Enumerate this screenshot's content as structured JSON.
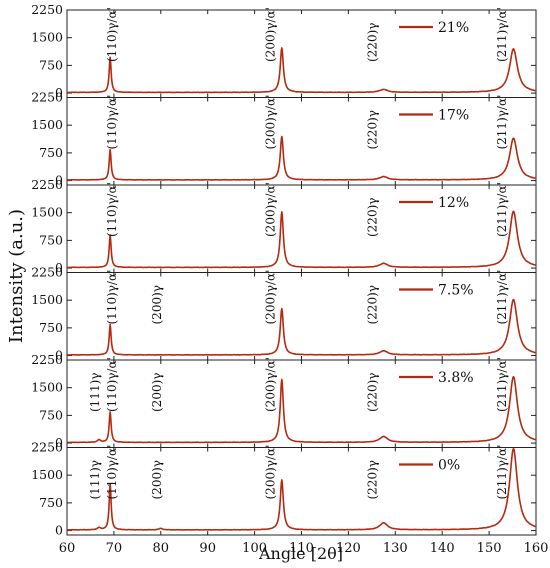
{
  "chart_data": {
    "type": "line",
    "xlabel": "Angle [2θ]",
    "ylabel": "Intensity (a.u.)",
    "xlim": [
      60,
      160
    ],
    "ylim": [
      -120,
      2250
    ],
    "xticks": [
      60,
      70,
      80,
      90,
      100,
      110,
      120,
      130,
      140,
      150,
      160
    ],
    "yticks": [
      0,
      750,
      1500,
      2250
    ],
    "grid": false,
    "legend_position": "top-right",
    "line_color": "#b22a10",
    "panels": [
      {
        "legend": "21%",
        "peaks": [
          {
            "x": 69.2,
            "y": 950,
            "w": 0.25
          },
          {
            "x": 105.8,
            "y": 1200,
            "w": 0.4
          },
          {
            "x": 127.5,
            "y": 80,
            "w": 1.0
          },
          {
            "x": 155.2,
            "y": 1180,
            "w": 1.0
          }
        ],
        "annotations": [
          {
            "x": 70.5,
            "text": "(110)γ/α'"
          },
          {
            "x": 104.2,
            "text": "(200)γ/α'"
          },
          {
            "x": 126.0,
            "text": "(220)γ"
          },
          {
            "x": 153.6,
            "text": "(211)γ/α'"
          }
        ]
      },
      {
        "legend": "17%",
        "peaks": [
          {
            "x": 69.2,
            "y": 820,
            "w": 0.25
          },
          {
            "x": 105.8,
            "y": 1170,
            "w": 0.4
          },
          {
            "x": 127.5,
            "y": 90,
            "w": 1.0
          },
          {
            "x": 155.2,
            "y": 1130,
            "w": 1.0
          }
        ],
        "annotations": [
          {
            "x": 70.5,
            "text": "(110)γ/α'"
          },
          {
            "x": 104.2,
            "text": "(200)γ/α'"
          },
          {
            "x": 126.0,
            "text": "(220)γ"
          },
          {
            "x": 153.6,
            "text": "(211)γ/α'"
          }
        ]
      },
      {
        "legend": "12%",
        "peaks": [
          {
            "x": 69.2,
            "y": 880,
            "w": 0.25
          },
          {
            "x": 105.8,
            "y": 1500,
            "w": 0.4
          },
          {
            "x": 127.5,
            "y": 110,
            "w": 1.0
          },
          {
            "x": 155.2,
            "y": 1520,
            "w": 1.0
          }
        ],
        "annotations": [
          {
            "x": 70.5,
            "text": "(110)γ/α'"
          },
          {
            "x": 104.2,
            "text": "(200)γ/α'"
          },
          {
            "x": 126.0,
            "text": "(220)γ"
          },
          {
            "x": 153.6,
            "text": "(211)γ/α'"
          }
        ]
      },
      {
        "legend": "7.5%",
        "peaks": [
          {
            "x": 69.2,
            "y": 820,
            "w": 0.25
          },
          {
            "x": 105.8,
            "y": 1250,
            "w": 0.4
          },
          {
            "x": 127.5,
            "y": 110,
            "w": 1.0
          },
          {
            "x": 155.2,
            "y": 1500,
            "w": 1.0
          }
        ],
        "annotations": [
          {
            "x": 70.5,
            "text": "(110)γ/α'"
          },
          {
            "x": 80.0,
            "text": "(200)γ"
          },
          {
            "x": 104.2,
            "text": "(200)γ/α'"
          },
          {
            "x": 126.0,
            "text": "(220)γ"
          },
          {
            "x": 153.6,
            "text": "(211)γ/α'"
          }
        ]
      },
      {
        "legend": "3.8%",
        "peaks": [
          {
            "x": 66.8,
            "y": 70,
            "w": 0.4
          },
          {
            "x": 69.2,
            "y": 820,
            "w": 0.25
          },
          {
            "x": 105.8,
            "y": 1700,
            "w": 0.4
          },
          {
            "x": 127.5,
            "y": 160,
            "w": 1.0
          },
          {
            "x": 155.2,
            "y": 1780,
            "w": 1.0
          }
        ],
        "annotations": [
          {
            "x": 66.8,
            "text": "(111)γ"
          },
          {
            "x": 70.5,
            "text": "(110)γ/α'"
          },
          {
            "x": 80.0,
            "text": "(200)γ"
          },
          {
            "x": 104.2,
            "text": "(200)γ/α'"
          },
          {
            "x": 126.0,
            "text": "(220)γ"
          },
          {
            "x": 153.6,
            "text": "(211)γ/α'"
          }
        ]
      },
      {
        "legend": "0%",
        "peaks": [
          {
            "x": 66.8,
            "y": 60,
            "w": 0.4
          },
          {
            "x": 69.2,
            "y": 1250,
            "w": 0.25
          },
          {
            "x": 80.0,
            "y": 40,
            "w": 0.5
          },
          {
            "x": 105.8,
            "y": 1350,
            "w": 0.4
          },
          {
            "x": 127.5,
            "y": 190,
            "w": 1.0
          },
          {
            "x": 155.2,
            "y": 2200,
            "w": 1.0
          }
        ],
        "annotations": [
          {
            "x": 66.8,
            "text": "(111)γ"
          },
          {
            "x": 70.5,
            "text": "(110)γ/α'"
          },
          {
            "x": 80.0,
            "text": "(200)γ"
          },
          {
            "x": 104.2,
            "text": "(200)γ/α'"
          },
          {
            "x": 126.0,
            "text": "(220)γ"
          },
          {
            "x": 153.6,
            "text": "(211)γ/α'"
          }
        ]
      }
    ]
  }
}
